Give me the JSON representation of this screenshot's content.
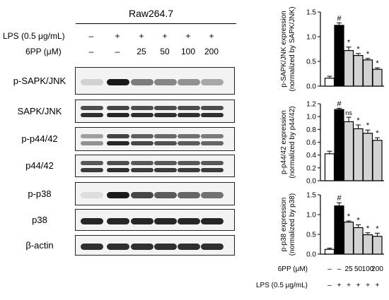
{
  "western_blot": {
    "cell_line": "Raw264.7",
    "lps_label": "LPS (0.5 μg/mL)",
    "lps_row": [
      "–",
      "+",
      "+",
      "+",
      "+",
      "+"
    ],
    "pp_label": "6PP (μM)",
    "pp_row": [
      "–",
      "–",
      "25",
      "50",
      "100",
      "200"
    ],
    "blots": [
      {
        "label": "p-SAPK/JNK",
        "intensity": [
          0.15,
          1.0,
          0.55,
          0.5,
          0.45,
          0.35
        ]
      },
      {
        "label": "SAPK/JNK",
        "intensity": [
          0.9,
          0.95,
          0.9,
          0.9,
          0.9,
          0.9
        ]
      },
      {
        "label": "p-p44/42",
        "intensity": [
          0.45,
          0.95,
          0.8,
          0.75,
          0.7,
          0.65
        ]
      },
      {
        "label": "p44/42",
        "intensity": [
          0.85,
          0.9,
          0.85,
          0.85,
          0.85,
          0.85
        ]
      },
      {
        "label": "p-p38",
        "intensity": [
          0.1,
          1.0,
          0.8,
          0.7,
          0.65,
          0.6
        ]
      },
      {
        "label": "p38",
        "intensity": [
          0.95,
          0.95,
          0.95,
          0.95,
          0.95,
          0.95
        ]
      },
      {
        "label": "β-actin",
        "intensity": [
          0.9,
          0.9,
          0.9,
          0.9,
          0.9,
          0.9
        ]
      }
    ]
  },
  "chart_data": [
    {
      "type": "bar",
      "ylabel_line1": "p-SAPK/JNK expression",
      "ylabel_line2": "(normalized by SAPK/JNK)",
      "ylim": [
        0.0,
        1.5
      ],
      "yticks": [
        0.0,
        0.5,
        1.0,
        1.5
      ],
      "ytick_labels": [
        "0.0",
        "0.5",
        "1.0",
        "1.5"
      ],
      "values": [
        0.16,
        1.23,
        0.72,
        0.62,
        0.53,
        0.34
      ],
      "errors": [
        0.04,
        0.05,
        0.07,
        0.04,
        0.03,
        0.03
      ],
      "annotations": [
        "",
        "#",
        "*",
        "*",
        "*",
        "*"
      ]
    },
    {
      "type": "bar",
      "ylabel_line1": "p-p44/42 expression",
      "ylabel_line2": "(normalized by p44/42)",
      "ylim": [
        0.0,
        1.2
      ],
      "yticks": [
        0.0,
        0.2,
        0.4,
        0.6,
        0.8,
        1.0,
        1.2
      ],
      "ytick_labels": [
        "0.0",
        "0.2",
        "0.4",
        "0.6",
        "0.8",
        "1.0",
        "1.2"
      ],
      "values": [
        0.42,
        1.11,
        0.92,
        0.81,
        0.74,
        0.63
      ],
      "errors": [
        0.04,
        0.02,
        0.07,
        0.06,
        0.05,
        0.04
      ],
      "annotations": [
        "",
        "#",
        "ns",
        "*",
        "*",
        "*"
      ]
    },
    {
      "type": "bar",
      "ylabel_line1": "p-p38 expression",
      "ylabel_line2": "(normalized by p38)",
      "ylim": [
        0.0,
        1.5
      ],
      "yticks": [
        0.0,
        0.5,
        1.0,
        1.5
      ],
      "ytick_labels": [
        "0.0",
        "0.5",
        "1.0",
        "1.5"
      ],
      "values": [
        0.12,
        1.22,
        0.81,
        0.67,
        0.49,
        0.45
      ],
      "errors": [
        0.03,
        0.08,
        0.03,
        0.07,
        0.05,
        0.08
      ],
      "annotations": [
        "",
        "#",
        "*",
        "*",
        "*",
        "*"
      ]
    }
  ],
  "chart_x_labels": {
    "pp_label": "6PP (μM)",
    "pp_row": [
      "–",
      "–",
      "25",
      "50",
      "100",
      "200"
    ],
    "lps_label": "LPS (0.5 μg/mL)",
    "lps_row": [
      "–",
      "+",
      "+",
      "+",
      "+",
      "+"
    ]
  },
  "colors": {
    "control": "#ffffff",
    "lps": "#000000",
    "treated": "#d3d3d3",
    "outline": "#000000",
    "band": "#1a1a1a"
  }
}
